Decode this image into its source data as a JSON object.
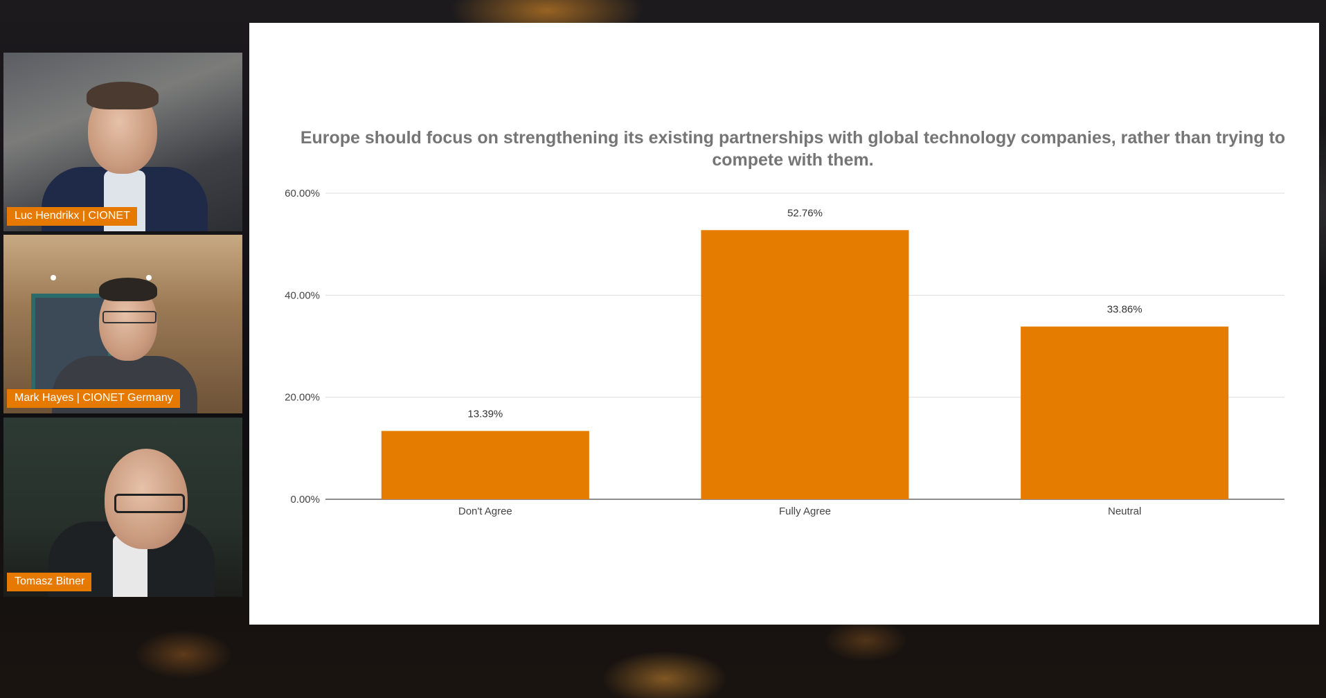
{
  "participants": [
    {
      "name": "Luc Hendrikx | CIONET"
    },
    {
      "name": "Mark Hayes | CIONET Germany"
    },
    {
      "name": "Tomasz Bitner"
    }
  ],
  "slide": {
    "title": "Europe should focus on strengthening its existing partnerships with global technology companies, rather than trying to compete with them."
  },
  "colors": {
    "accent": "#e67a00",
    "bar": "#e57c00",
    "gridline": "#dddddd"
  },
  "chart_data": {
    "type": "bar",
    "title": "Europe should focus on strengthening its existing partnerships with global technology companies, rather than trying to compete with them.",
    "categories": [
      "Don't Agree",
      "Fully Agree",
      "Neutral"
    ],
    "values": [
      13.39,
      52.76,
      33.86
    ],
    "value_labels": [
      "13.39%",
      "52.76%",
      "33.86%"
    ],
    "yticks": [
      "0.00%",
      "20.00%",
      "40.00%",
      "60.00%"
    ],
    "ylim": [
      0,
      60
    ],
    "grid": true,
    "legend": "none"
  }
}
